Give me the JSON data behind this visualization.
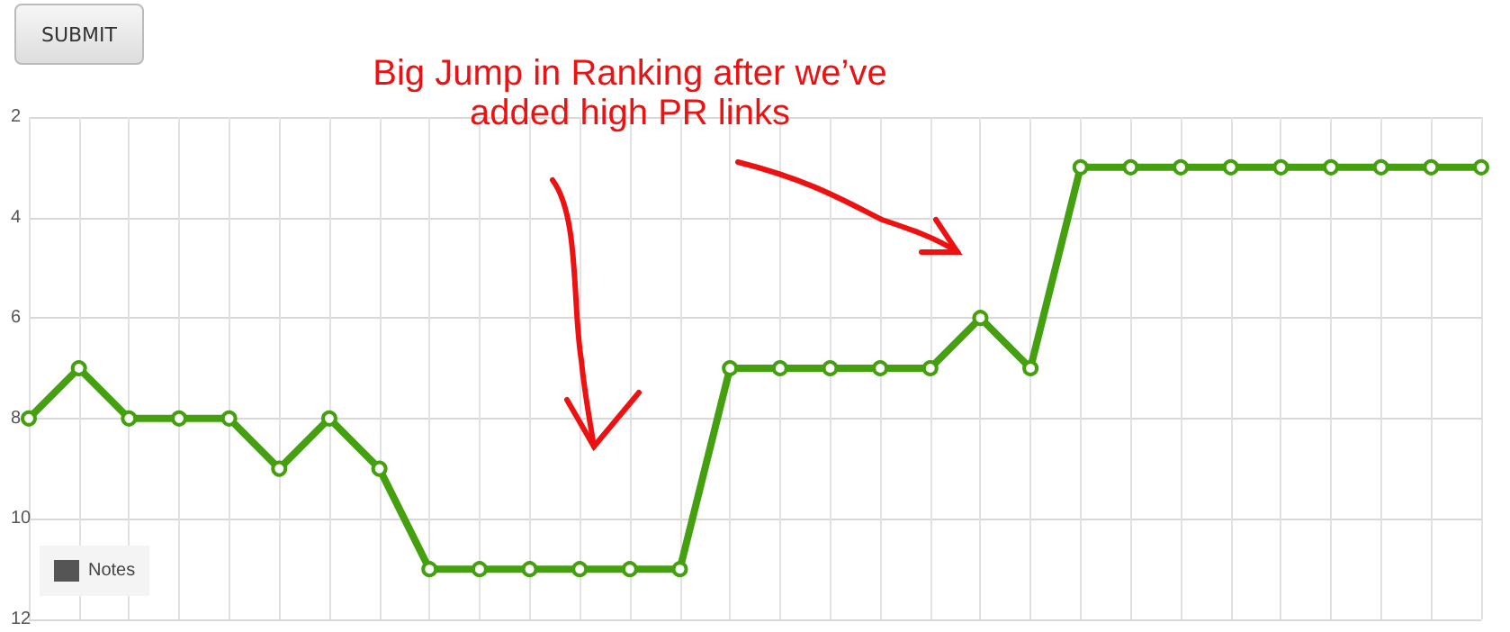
{
  "chart_data": {
    "type": "line",
    "annotations": [
      "SUBMIT",
      "Big Jump in Ranking after we’ve added high PR links"
    ],
    "categories": [
      null,
      null,
      null,
      null,
      null,
      null,
      null,
      null,
      null,
      null,
      null,
      null,
      null,
      null,
      null,
      null,
      null,
      null,
      null,
      null,
      null,
      null,
      null,
      null,
      null,
      null,
      null,
      null,
      null,
      null
    ],
    "series": [
      {
        "color": "#44a00f",
        "values": [
          8,
          7,
          8,
          8,
          8,
          9,
          8,
          9,
          11,
          11,
          11,
          11,
          11,
          11,
          7,
          7,
          7,
          7,
          7,
          6,
          7,
          3,
          3,
          3,
          3,
          3,
          3,
          3,
          3,
          3
        ]
      },
      {
        "name": "Notes",
        "color": "#555555",
        "values": [
          null,
          null,
          null,
          null,
          null,
          null,
          null,
          null,
          null,
          null,
          null,
          null,
          null,
          null,
          null,
          null,
          null,
          null,
          null,
          null,
          null,
          null,
          null,
          null,
          null,
          null,
          null,
          null,
          null,
          null
        ]
      }
    ],
    "ylim": [
      12,
      2
    ],
    "yticks": [
      2,
      4,
      6,
      8,
      10,
      12
    ],
    "grid": true,
    "legend": "bottom left",
    "marker": "circle",
    "line_style": "solid"
  }
}
